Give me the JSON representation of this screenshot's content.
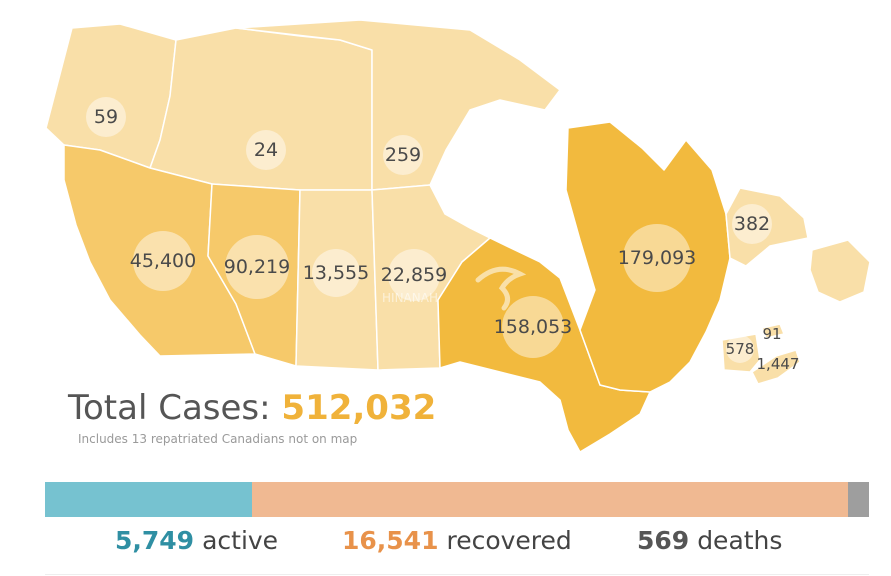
{
  "map": {
    "watermark": "HINANAH",
    "colors": {
      "land_light": "#f9dfa8",
      "land_mid": "#f6c96a",
      "land_dark": "#f2ba3e",
      "border": "#ffffff"
    },
    "regions": [
      {
        "id": "yukon",
        "label": "59"
      },
      {
        "id": "northwest-territories",
        "label": "24"
      },
      {
        "id": "nunavut",
        "label": "259"
      },
      {
        "id": "british-columbia",
        "label": "45,400"
      },
      {
        "id": "alberta",
        "label": "90,219"
      },
      {
        "id": "saskatchewan",
        "label": "13,555"
      },
      {
        "id": "manitoba",
        "label": "22,859"
      },
      {
        "id": "ontario",
        "label": "158,053"
      },
      {
        "id": "quebec",
        "label": "179,093"
      },
      {
        "id": "newfoundland-and-labrador",
        "label": "382"
      },
      {
        "id": "prince-edward-island",
        "label": "91"
      },
      {
        "id": "new-brunswick",
        "label": "578"
      },
      {
        "id": "nova-scotia",
        "label": "1,447"
      }
    ]
  },
  "total": {
    "label": "Total Cases:",
    "value": "512,032",
    "note": "Includes 13 repatriated Canadians not on map"
  },
  "status_bar": {
    "segments": [
      {
        "name": "active",
        "count": 5749,
        "color": "#76c2d0"
      },
      {
        "name": "recovered",
        "count": 16541,
        "color": "#f0b992"
      },
      {
        "name": "deaths",
        "count": 569,
        "color": "#9e9e9e"
      }
    ]
  },
  "stats": {
    "active": {
      "value": "5,749",
      "label": "active",
      "color": "#2f8fa3"
    },
    "recovered": {
      "value": "16,541",
      "label": "recovered",
      "color": "#e8924a"
    },
    "deaths": {
      "value": "569",
      "label": "deaths",
      "color": "#555555"
    }
  }
}
